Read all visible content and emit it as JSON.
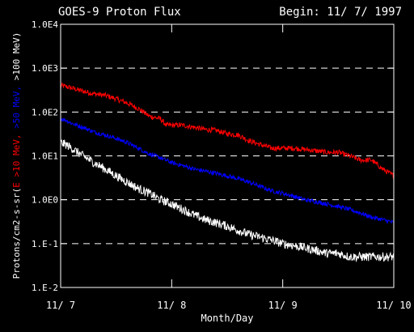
{
  "chart_data": {
    "type": "line",
    "title": "GOES-9 Proton Flux",
    "begin_label": "Begin: 11/ 7/ 1997",
    "xlabel": "Month/Day",
    "ylabel_parts": [
      {
        "text": "Protons/cm2-s-sr(",
        "color": "#ffffff"
      },
      {
        "text": "E >10 MeV,",
        "color": "#ff0000"
      },
      {
        "text": " >50 MeV,",
        "color": "#0000ff"
      },
      {
        "text": " >100 MeV)",
        "color": "#ffffff"
      }
    ],
    "x_ticks": [
      "11/ 7",
      "11/ 8",
      "11/ 9",
      "11/ 10"
    ],
    "y_ticks": [
      "1.E-2",
      "1.E-1",
      "1.0E0",
      "1.0E1",
      "1.0E2",
      "1.0E3",
      "1.0E4"
    ],
    "y_scale": "log",
    "ylim": [
      0.01,
      10000
    ],
    "xlim_days": [
      0,
      3
    ],
    "grid": "dashed horizontal at each decade",
    "series": [
      {
        "name": ">10 MeV",
        "color": "#ff0000",
        "noise_dex": 0.06,
        "x": [
          0,
          0.05,
          0.1,
          0.2,
          0.3,
          0.4,
          0.5,
          0.6,
          0.7,
          0.8,
          0.9,
          0.95,
          1.0,
          1.1,
          1.2,
          1.3,
          1.4,
          1.5,
          1.6,
          1.7,
          1.8,
          1.9,
          2.0,
          2.1,
          2.2,
          2.3,
          2.4,
          2.5,
          2.6,
          2.7,
          2.8,
          2.9,
          3.0
        ],
        "y": [
          400,
          380,
          350,
          300,
          260,
          240,
          200,
          160,
          120,
          80,
          70,
          50,
          50,
          50,
          45,
          40,
          38,
          32,
          30,
          22,
          18,
          15,
          15,
          15,
          14,
          13,
          12,
          12,
          10,
          8,
          8,
          5,
          3.5
        ]
      },
      {
        "name": ">50 MeV",
        "color": "#0000ff",
        "noise_dex": 0.05,
        "x": [
          0,
          0.05,
          0.1,
          0.2,
          0.3,
          0.4,
          0.5,
          0.6,
          0.7,
          0.8,
          0.9,
          1.0,
          1.1,
          1.2,
          1.3,
          1.4,
          1.5,
          1.6,
          1.7,
          1.8,
          1.9,
          2.0,
          2.1,
          2.2,
          2.3,
          2.4,
          2.5,
          2.6,
          2.7,
          2.8,
          2.9,
          3.0
        ],
        "y": [
          70,
          65,
          55,
          45,
          35,
          30,
          25,
          20,
          15,
          11,
          9,
          7,
          6,
          5,
          4.5,
          4,
          3.5,
          3,
          2.5,
          2,
          1.6,
          1.4,
          1.2,
          1.0,
          0.9,
          0.8,
          0.7,
          0.6,
          0.5,
          0.4,
          0.35,
          0.3
        ]
      },
      {
        "name": ">100 MeV",
        "color": "#ffffff",
        "noise_dex": 0.1,
        "x": [
          0,
          0.05,
          0.1,
          0.2,
          0.3,
          0.4,
          0.5,
          0.6,
          0.7,
          0.8,
          0.9,
          1.0,
          1.1,
          1.2,
          1.3,
          1.4,
          1.5,
          1.6,
          1.7,
          1.8,
          1.9,
          2.0,
          2.1,
          2.2,
          2.3,
          2.4,
          2.5,
          2.6,
          2.7,
          2.8,
          2.9,
          3.0
        ],
        "y": [
          20,
          18,
          15,
          10,
          7,
          5,
          3.5,
          2.5,
          1.8,
          1.4,
          1.0,
          0.8,
          0.6,
          0.45,
          0.35,
          0.3,
          0.25,
          0.2,
          0.16,
          0.14,
          0.12,
          0.1,
          0.09,
          0.08,
          0.07,
          0.06,
          0.06,
          0.05,
          0.05,
          0.05,
          0.05,
          0.05
        ]
      }
    ]
  }
}
